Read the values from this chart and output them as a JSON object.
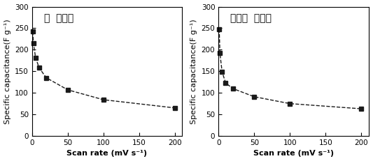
{
  "chart1": {
    "title": "철  복합화",
    "x": [
      1,
      2,
      5,
      10,
      20,
      50,
      100,
      200
    ],
    "y": [
      242,
      215,
      182,
      158,
      135,
      107,
      84,
      65
    ],
    "ylabel": "Specific capacitance(F g⁻¹)",
    "xlabel": "Scan rate (mV s⁻¹)"
  },
  "chart2": {
    "title": "코발트  복합화",
    "x": [
      1,
      2,
      5,
      10,
      20,
      50,
      100,
      200
    ],
    "y": [
      248,
      192,
      149,
      123,
      110,
      91,
      75,
      63
    ],
    "ylabel": "Specific capacitance(F g⁻¹)",
    "xlabel": "Scan rate (mV s⁻¹)"
  },
  "xlim": [
    0,
    210
  ],
  "ylim": [
    0,
    300
  ],
  "xticks": [
    0,
    50,
    100,
    150,
    200
  ],
  "yticks": [
    0,
    50,
    100,
    150,
    200,
    250,
    300
  ],
  "line_color": "#1a1a1a",
  "marker": "s",
  "markersize": 4,
  "linewidth": 1.0,
  "linestyle": "--",
  "background_color": "#ffffff",
  "title_fontsize": 10,
  "label_fontsize": 8,
  "tick_fontsize": 7.5
}
